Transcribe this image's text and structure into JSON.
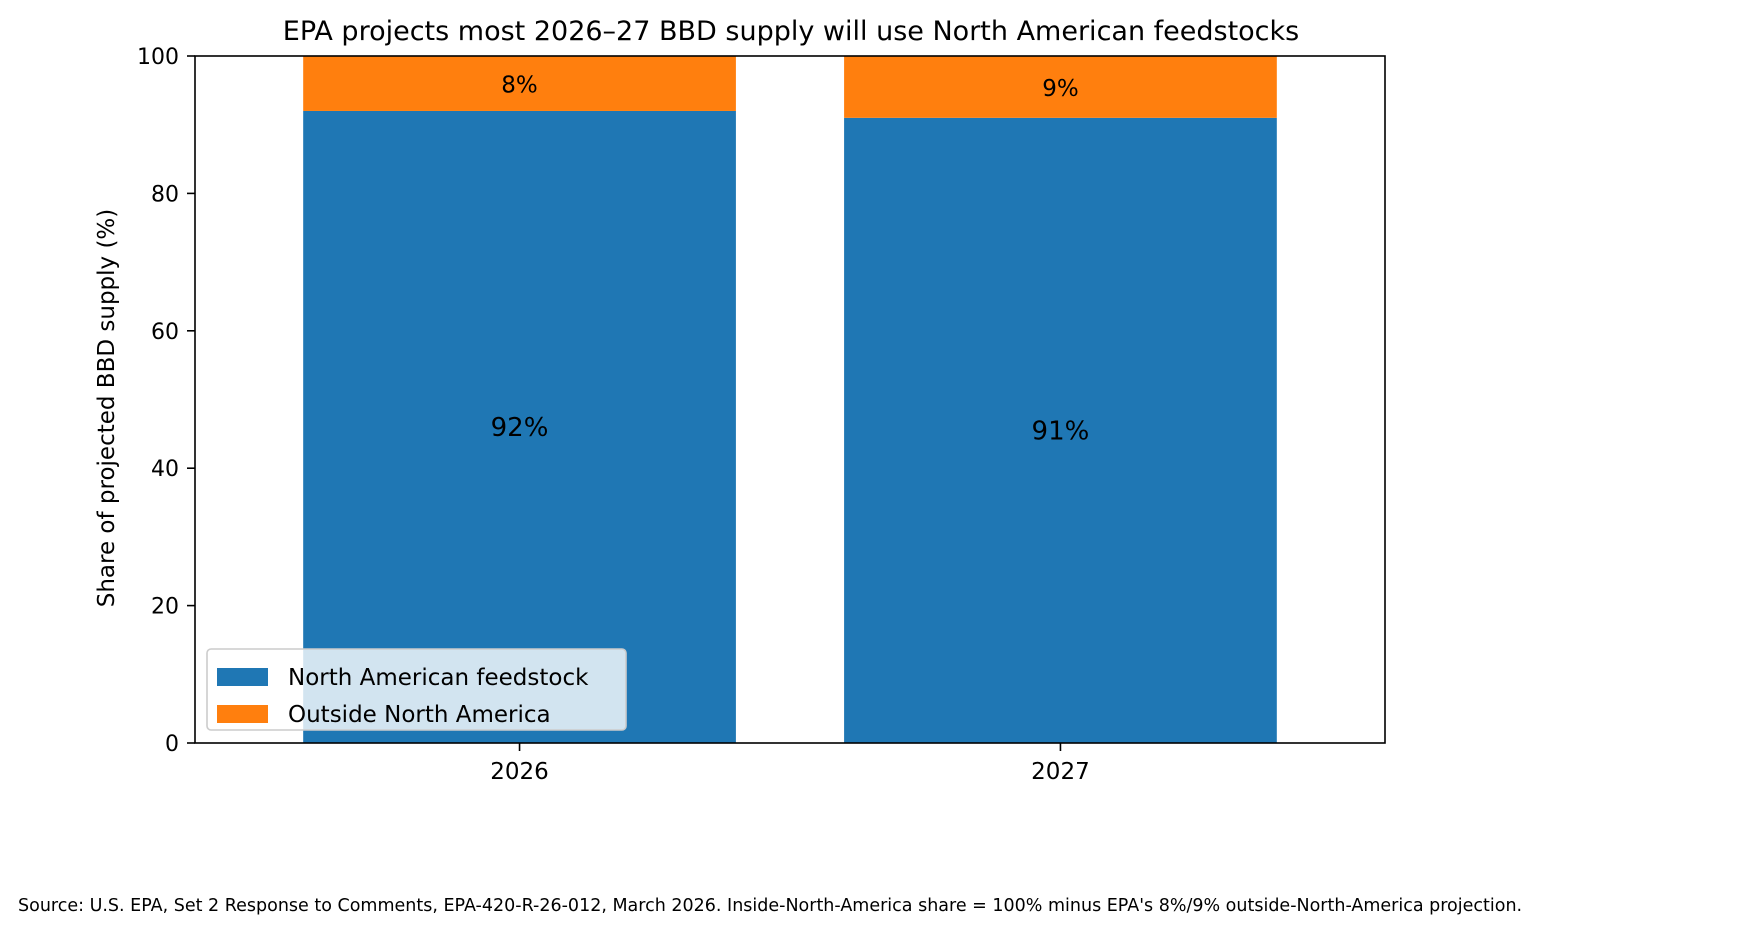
{
  "chart_data": {
    "type": "bar",
    "stacked": true,
    "title": "EPA projects most 2026–27 BBD supply will use North American feedstocks",
    "xlabel": "",
    "ylabel": "Share of projected BBD supply (%)",
    "ylim": [
      0,
      100
    ],
    "yticks": [
      0,
      20,
      40,
      60,
      80,
      100
    ],
    "categories": [
      "2026",
      "2027"
    ],
    "series": [
      {
        "name": "North American feedstock",
        "values": [
          92,
          91
        ],
        "labels": [
          "92%",
          "91%"
        ],
        "color": "#1f77b4"
      },
      {
        "name": "Outside North America",
        "values": [
          8,
          9
        ],
        "labels": [
          "8%",
          "9%"
        ],
        "color": "#ff7f0e"
      }
    ],
    "grid": false,
    "legend_position": "bottom-left"
  },
  "source_note": "Source: U.S. EPA, Set 2 Response to Comments, EPA-420-R-26-012, March 2026. Inside-North-America share = 100% minus EPA's 8%/9% outside-North-America projection."
}
